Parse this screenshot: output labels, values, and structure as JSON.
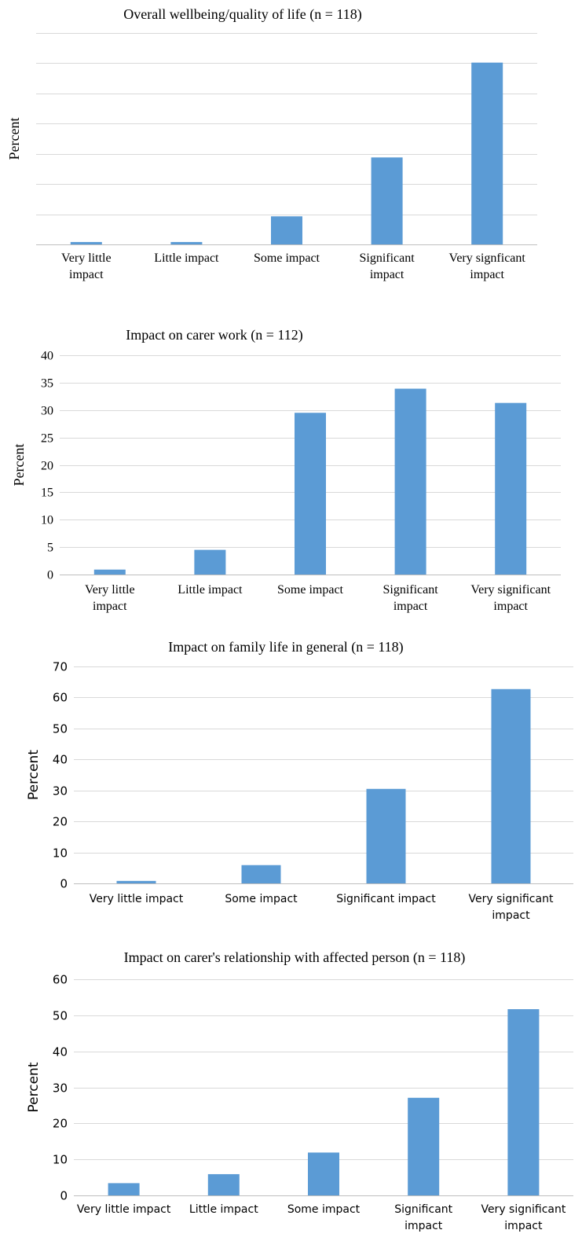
{
  "colors": {
    "bar": "#5b9bd5",
    "grid": "#d9d9d9"
  },
  "chart_data": [
    {
      "type": "bar",
      "title": "Overall wellbeing/quality of life (n = 118)",
      "ylabel": "Percent",
      "xlabel": "",
      "ylim": [
        0,
        70
      ],
      "y_ticks_shown": false,
      "grid": true,
      "categories": [
        "Very little impact",
        "Little impact",
        "Some impact",
        "Significant impact",
        "Very signficant impact"
      ],
      "values": [
        0.8,
        0.8,
        9.3,
        28.8,
        60.2
      ]
    },
    {
      "type": "bar",
      "title": "Impact on carer work  (n = 112)",
      "ylabel": "Percent",
      "xlabel": "",
      "ylim": [
        0,
        40
      ],
      "yticks": [
        0,
        5,
        10,
        15,
        20,
        25,
        30,
        35,
        40
      ],
      "grid": true,
      "categories": [
        "Very little impact",
        "Little impact",
        "Some impact",
        "Significant impact",
        "Very significant impact"
      ],
      "values": [
        0.9,
        4.5,
        29.5,
        33.9,
        31.3
      ]
    },
    {
      "type": "bar",
      "title": "Impact on family life in general (n = 118)",
      "ylabel": "Percent",
      "xlabel": "",
      "ylim": [
        0,
        70
      ],
      "yticks": [
        0,
        10,
        20,
        30,
        40,
        50,
        60,
        70
      ],
      "grid": true,
      "categories": [
        "Very little impact",
        "Some impact",
        "Significant impact",
        "Very significant impact"
      ],
      "values": [
        0.8,
        5.9,
        30.5,
        62.7
      ]
    },
    {
      "type": "bar",
      "title": "Impact on carer's relationship with affected person (n = 118)",
      "ylabel": "Percent",
      "xlabel": "",
      "ylim": [
        0,
        60
      ],
      "yticks": [
        0,
        10,
        20,
        30,
        40,
        50,
        60
      ],
      "grid": true,
      "categories": [
        "Very little impact",
        "Little impact",
        "Some impact",
        "Significant impact",
        "Very significant impact"
      ],
      "values": [
        3.4,
        5.9,
        11.9,
        27.1,
        51.7
      ]
    }
  ]
}
